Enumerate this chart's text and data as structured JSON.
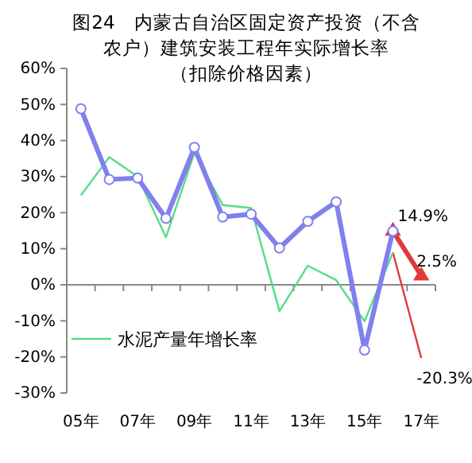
{
  "chart_data": {
    "type": "line",
    "title": "图24　内蒙古自治区固定资产投资（不含农户）建筑安装工程年实际增长率",
    "subtitle": "（扣除价格因素）",
    "categories": [
      "05年",
      null,
      "07年",
      null,
      "09年",
      null,
      "11年",
      null,
      "13年",
      null,
      "15年",
      null,
      "17年"
    ],
    "series": [
      {
        "color": "#8080ee",
        "marker": "circle",
        "values": [
          48.8,
          29.2,
          29.6,
          18.4,
          38.1,
          18.8,
          19.6,
          10.2,
          17.6,
          23,
          -18.1,
          14.9,
          null
        ]
      },
      {
        "name": "水泥产量年增长率",
        "color": "#55dd88",
        "marker": "none",
        "values": [
          24.8,
          35.4,
          30,
          13.2,
          36.6,
          22.1,
          21.3,
          -7.3,
          5.3,
          1.3,
          -10.1,
          9,
          null
        ]
      },
      {
        "color": "#e03a3a",
        "marker": "triangle",
        "values": [
          null,
          null,
          null,
          null,
          null,
          null,
          null,
          null,
          null,
          null,
          null,
          14.9,
          2.5
        ],
        "value_labels": [
          null,
          null,
          null,
          null,
          null,
          null,
          null,
          null,
          null,
          null,
          null,
          "14.9%",
          "2.5%"
        ]
      },
      {
        "color": "#e03a3a",
        "marker": "none",
        "values": [
          null,
          null,
          null,
          null,
          null,
          null,
          null,
          null,
          null,
          null,
          null,
          9,
          -20.3
        ],
        "value_labels": [
          null,
          null,
          null,
          null,
          null,
          null,
          null,
          null,
          null,
          null,
          null,
          null,
          "-20.3%"
        ]
      }
    ],
    "ylim": [
      -30,
      60
    ],
    "yticks": [
      {
        "value": -30,
        "label": "-30%"
      },
      {
        "value": -20,
        "label": "-20%"
      },
      {
        "value": -10,
        "label": "-10%"
      },
      {
        "value": 0,
        "label": "0%"
      },
      {
        "value": 10,
        "label": "10%"
      },
      {
        "value": 20,
        "label": "20%"
      },
      {
        "value": 30,
        "label": "30%"
      },
      {
        "value": 40,
        "label": "40%"
      },
      {
        "value": 50,
        "label": "50%"
      },
      {
        "value": 60,
        "label": "60%"
      }
    ],
    "legend": "left"
  }
}
